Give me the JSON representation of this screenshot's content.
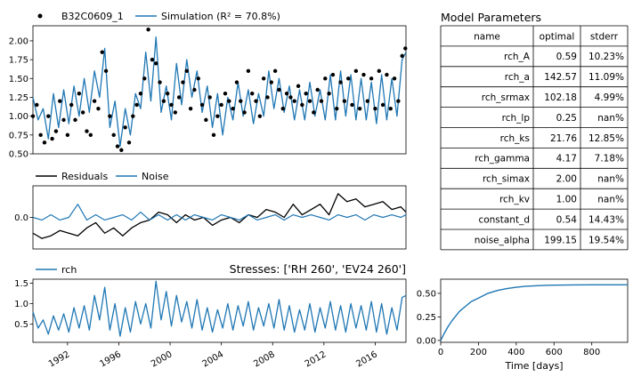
{
  "figure": {
    "params_title": "Model Parameters",
    "params_table": {
      "headers": [
        "name",
        "optimal",
        "stderr"
      ],
      "rows": [
        [
          "rch_A",
          "0.59",
          "10.23%"
        ],
        [
          "rch_a",
          "142.57",
          "11.09%"
        ],
        [
          "rch_srmax",
          "102.18",
          "4.99%"
        ],
        [
          "rch_lp",
          "0.25",
          "nan%"
        ],
        [
          "rch_ks",
          "21.76",
          "12.85%"
        ],
        [
          "rch_gamma",
          "4.17",
          "7.18%"
        ],
        [
          "rch_simax",
          "2.00",
          "nan%"
        ],
        [
          "rch_kv",
          "1.00",
          "nan%"
        ],
        [
          "constant_d",
          "0.54",
          "14.43%"
        ],
        [
          "noise_alpha",
          "199.15",
          "19.54%"
        ]
      ]
    },
    "stresses_title": "Stresses: ['RH 260', 'EV24 260']"
  },
  "colors": {
    "simulation": "#1f77b4",
    "observed": "#000000",
    "residuals": "#000000",
    "noise": "#1f77b4",
    "rch": "#1f77b4",
    "step": "#1f77b4"
  },
  "chart_data": [
    {
      "id": "fit",
      "type": "line",
      "legend": [
        "B32C0609_1",
        "Simulation (R² = 70.8%)"
      ],
      "legend_placement": "top-left",
      "xlim": [
        1989.3,
        2018.4
      ],
      "ylim": [
        0.5,
        2.2
      ],
      "yticks": [
        "0.50",
        "0.75",
        "1.00",
        "1.25",
        "1.50",
        "1.75",
        "2.00"
      ],
      "ytick_values": [
        0.5,
        0.75,
        1.0,
        1.25,
        1.5,
        1.75,
        2.0
      ],
      "simulation": {
        "x": [
          1989.3,
          1989.7,
          1990.1,
          1990.5,
          1990.9,
          1991.3,
          1991.7,
          1992.1,
          1992.5,
          1992.9,
          1993.3,
          1993.7,
          1994.1,
          1994.5,
          1994.9,
          1995.3,
          1995.7,
          1996.1,
          1996.5,
          1996.9,
          1997.3,
          1997.7,
          1998.1,
          1998.5,
          1998.9,
          1999.3,
          1999.7,
          2000.1,
          2000.5,
          2000.9,
          2001.3,
          2001.7,
          2002.1,
          2002.5,
          2002.9,
          2003.3,
          2003.7,
          2004.1,
          2004.5,
          2004.9,
          2005.3,
          2005.7,
          2006.1,
          2006.5,
          2006.9,
          2007.3,
          2007.7,
          2008.1,
          2008.5,
          2008.9,
          2009.3,
          2009.7,
          2010.1,
          2010.5,
          2010.9,
          2011.3,
          2011.7,
          2012.1,
          2012.5,
          2012.9,
          2013.3,
          2013.7,
          2014.1,
          2014.5,
          2014.9,
          2015.3,
          2015.7,
          2016.1,
          2016.5,
          2016.9,
          2017.3,
          2017.7,
          2018.1,
          2018.4
        ],
        "y": [
          1.25,
          0.95,
          1.1,
          0.7,
          1.3,
          0.85,
          1.35,
          0.9,
          1.4,
          1.0,
          1.5,
          1.05,
          1.6,
          1.25,
          1.9,
          0.85,
          1.2,
          0.6,
          1.1,
          0.75,
          1.3,
          1.1,
          1.85,
          1.2,
          2.05,
          1.05,
          1.4,
          0.95,
          1.7,
          1.15,
          1.75,
          1.25,
          1.6,
          1.05,
          1.4,
          0.85,
          1.3,
          0.75,
          1.25,
          0.95,
          1.45,
          1.0,
          1.35,
          0.9,
          1.3,
          1.0,
          1.6,
          1.1,
          1.5,
          1.05,
          1.4,
          0.95,
          1.35,
          0.95,
          1.45,
          1.0,
          1.35,
          0.95,
          1.55,
          0.95,
          1.6,
          1.0,
          1.55,
          0.95,
          1.5,
          0.95,
          1.45,
          0.9,
          1.55,
          0.95,
          1.5,
          1.0,
          1.75,
          1.85
        ]
      },
      "observed": {
        "x": [
          1989.3,
          1989.6,
          1989.9,
          1990.2,
          1990.5,
          1990.8,
          1991.1,
          1991.4,
          1991.7,
          1992.0,
          1992.3,
          1992.6,
          1992.9,
          1993.2,
          1993.5,
          1993.8,
          1994.1,
          1994.4,
          1994.7,
          1995.0,
          1995.3,
          1995.6,
          1995.9,
          1996.2,
          1996.5,
          1996.8,
          1997.1,
          1997.4,
          1997.7,
          1998.0,
          1998.3,
          1998.6,
          1998.9,
          1999.2,
          1999.5,
          1999.8,
          2000.1,
          2000.4,
          2000.7,
          2001.0,
          2001.3,
          2001.6,
          2001.9,
          2002.2,
          2002.5,
          2002.8,
          2003.1,
          2003.4,
          2003.7,
          2004.0,
          2004.3,
          2004.6,
          2004.9,
          2005.2,
          2005.5,
          2005.8,
          2006.1,
          2006.4,
          2006.7,
          2007.0,
          2007.3,
          2007.6,
          2007.9,
          2008.2,
          2008.5,
          2008.8,
          2009.1,
          2009.4,
          2009.7,
          2010.0,
          2010.3,
          2010.6,
          2010.9,
          2011.2,
          2011.5,
          2011.8,
          2012.1,
          2012.4,
          2012.7,
          2013.0,
          2013.3,
          2013.6,
          2013.9,
          2014.2,
          2014.5,
          2014.8,
          2015.1,
          2015.4,
          2015.7,
          2016.0,
          2016.3,
          2016.6,
          2016.9,
          2017.2,
          2017.5,
          2017.8,
          2018.1,
          2018.35
        ],
        "y": [
          1.0,
          1.15,
          0.75,
          0.65,
          1.0,
          0.7,
          0.8,
          1.2,
          0.95,
          0.75,
          1.15,
          0.95,
          1.3,
          1.05,
          0.8,
          0.75,
          1.2,
          1.1,
          1.85,
          1.6,
          1.0,
          0.75,
          0.6,
          0.55,
          0.85,
          0.65,
          1.0,
          1.15,
          1.3,
          1.5,
          2.15,
          1.75,
          1.7,
          1.45,
          1.2,
          1.3,
          1.15,
          1.05,
          1.25,
          1.45,
          1.6,
          1.1,
          1.35,
          1.5,
          1.15,
          0.95,
          1.25,
          0.75,
          1.0,
          1.15,
          1.3,
          1.2,
          1.1,
          1.45,
          1.2,
          1.05,
          1.6,
          1.3,
          1.2,
          1.0,
          1.5,
          1.25,
          1.45,
          1.6,
          1.35,
          1.1,
          1.3,
          1.25,
          1.2,
          1.4,
          1.15,
          1.3,
          1.2,
          1.05,
          1.35,
          1.2,
          1.5,
          1.3,
          1.55,
          1.1,
          1.45,
          1.2,
          1.5,
          1.15,
          1.6,
          1.1,
          1.55,
          1.2,
          1.5,
          1.1,
          1.6,
          1.15,
          1.55,
          1.1,
          1.5,
          1.2,
          1.8,
          1.9
        ]
      }
    },
    {
      "id": "residuals",
      "type": "line",
      "legend": [
        "Residuals",
        "Noise"
      ],
      "legend_placement": "top-left",
      "xlim": [
        1989.3,
        2018.4
      ],
      "ylim": [
        -0.6,
        0.6
      ],
      "yticks": [
        "0.0"
      ],
      "ytick_values": [
        0.0
      ],
      "series": [
        {
          "name": "Residuals",
          "x": [
            1989.3,
            1990.0,
            1990.7,
            1991.4,
            1992.1,
            1992.8,
            1993.5,
            1994.2,
            1994.9,
            1995.6,
            1996.3,
            1997.0,
            1997.7,
            1998.4,
            1999.1,
            1999.8,
            2000.5,
            2001.2,
            2001.9,
            2002.6,
            2003.3,
            2004.0,
            2004.7,
            2005.4,
            2006.1,
            2006.8,
            2007.5,
            2008.2,
            2008.9,
            2009.6,
            2010.3,
            2011.0,
            2011.7,
            2012.4,
            2013.1,
            2013.8,
            2014.5,
            2015.2,
            2015.9,
            2016.6,
            2017.3,
            2018.0,
            2018.4
          ],
          "y": [
            -0.3,
            -0.4,
            -0.35,
            -0.25,
            -0.3,
            -0.35,
            -0.2,
            -0.1,
            -0.3,
            -0.2,
            -0.35,
            -0.2,
            -0.1,
            -0.05,
            0.1,
            0.05,
            -0.1,
            0.05,
            -0.05,
            0.0,
            -0.15,
            -0.05,
            0.0,
            -0.1,
            0.05,
            0.0,
            0.15,
            0.1,
            0.0,
            0.25,
            0.05,
            0.15,
            0.25,
            0.05,
            0.45,
            0.3,
            0.35,
            0.2,
            0.25,
            0.3,
            0.15,
            0.2,
            0.1
          ]
        },
        {
          "name": "Noise",
          "x": [
            1989.3,
            1990.0,
            1990.7,
            1991.4,
            1992.1,
            1992.8,
            1993.5,
            1994.2,
            1994.9,
            1995.6,
            1996.3,
            1997.0,
            1997.7,
            1998.4,
            1999.1,
            1999.8,
            2000.5,
            2001.2,
            2001.9,
            2002.6,
            2003.3,
            2004.0,
            2004.7,
            2005.4,
            2006.1,
            2006.8,
            2007.5,
            2008.2,
            2008.9,
            2009.6,
            2010.3,
            2011.0,
            2011.7,
            2012.4,
            2013.1,
            2013.8,
            2014.5,
            2015.2,
            2015.9,
            2016.6,
            2017.3,
            2018.0,
            2018.4
          ],
          "y": [
            0.0,
            -0.05,
            0.05,
            -0.05,
            0.0,
            0.25,
            -0.05,
            0.05,
            -0.05,
            0.0,
            0.05,
            -0.05,
            0.1,
            -0.05,
            0.05,
            -0.05,
            0.05,
            -0.05,
            0.05,
            0.0,
            -0.05,
            0.05,
            0.0,
            -0.05,
            0.05,
            -0.05,
            0.0,
            0.05,
            -0.05,
            0.05,
            0.0,
            0.05,
            0.0,
            -0.05,
            0.05,
            0.0,
            0.05,
            -0.05,
            0.05,
            0.0,
            0.05,
            0.0,
            0.05
          ]
        }
      ]
    },
    {
      "id": "stresses",
      "type": "line",
      "legend": [
        "rch"
      ],
      "legend_placement": "top-left",
      "xlim": [
        1989.3,
        2018.4
      ],
      "ylim": [
        0.05,
        1.6
      ],
      "yticks": [
        "0.5",
        "1.0",
        "1.5"
      ],
      "ytick_values": [
        0.5,
        1.0,
        1.5
      ],
      "xticks": [
        "1992",
        "1996",
        "2000",
        "2004",
        "2008",
        "2012",
        "2016"
      ],
      "xtick_values": [
        1992,
        1996,
        2000,
        2004,
        2008,
        2012,
        2016
      ],
      "series": [
        {
          "name": "rch",
          "x": [
            1989.3,
            1989.7,
            1990.1,
            1990.5,
            1990.9,
            1991.3,
            1991.7,
            1992.1,
            1992.5,
            1992.9,
            1993.3,
            1993.7,
            1994.1,
            1994.5,
            1994.9,
            1995.3,
            1995.7,
            1996.1,
            1996.5,
            1996.9,
            1997.3,
            1997.7,
            1998.1,
            1998.5,
            1998.9,
            1999.3,
            1999.7,
            2000.1,
            2000.5,
            2000.9,
            2001.3,
            2001.7,
            2002.1,
            2002.5,
            2002.9,
            2003.3,
            2003.7,
            2004.1,
            2004.5,
            2004.9,
            2005.3,
            2005.7,
            2006.1,
            2006.5,
            2006.9,
            2007.3,
            2007.7,
            2008.1,
            2008.5,
            2008.9,
            2009.3,
            2009.7,
            2010.1,
            2010.5,
            2010.9,
            2011.3,
            2011.7,
            2012.1,
            2012.5,
            2012.9,
            2013.3,
            2013.7,
            2014.1,
            2014.5,
            2014.9,
            2015.3,
            2015.7,
            2016.1,
            2016.5,
            2016.9,
            2017.3,
            2017.7,
            2018.1,
            2018.4
          ],
          "y": [
            0.8,
            0.4,
            0.6,
            0.25,
            0.7,
            0.35,
            0.75,
            0.3,
            0.9,
            0.4,
            0.95,
            0.35,
            1.2,
            0.6,
            1.4,
            0.35,
            1.0,
            0.2,
            0.9,
            0.3,
            1.05,
            0.5,
            1.0,
            0.4,
            1.55,
            0.6,
            1.3,
            0.45,
            1.2,
            0.55,
            1.05,
            0.4,
            1.1,
            0.35,
            0.9,
            0.3,
            0.85,
            0.4,
            1.0,
            0.35,
            0.95,
            0.45,
            1.05,
            0.35,
            0.9,
            0.45,
            1.0,
            0.4,
            1.1,
            0.35,
            0.95,
            0.3,
            0.85,
            0.35,
            1.0,
            0.3,
            0.9,
            0.4,
            1.05,
            0.35,
            0.95,
            0.3,
            1.0,
            0.4,
            0.95,
            0.35,
            1.05,
            0.3,
            1.0,
            0.25,
            0.9,
            0.35,
            1.15,
            1.2
          ]
        }
      ]
    },
    {
      "id": "step_response",
      "type": "line",
      "xlabel": "Time [days]",
      "xlim": [
        0,
        990
      ],
      "ylim": [
        -0.02,
        0.65
      ],
      "xticks": [
        "0",
        "200",
        "400",
        "600",
        "800"
      ],
      "xtick_values": [
        0,
        200,
        400,
        600,
        800
      ],
      "yticks": [
        "0.00",
        "0.25",
        "0.50"
      ],
      "ytick_values": [
        0.0,
        0.25,
        0.5
      ],
      "series": [
        {
          "name": "",
          "x": [
            0,
            20,
            40,
            60,
            80,
            100,
            130,
            160,
            200,
            250,
            300,
            350,
            400,
            450,
            500,
            550,
            600,
            700,
            800,
            900,
            990
          ],
          "y": [
            0.0,
            0.08,
            0.15,
            0.21,
            0.26,
            0.31,
            0.36,
            0.41,
            0.45,
            0.5,
            0.53,
            0.55,
            0.565,
            0.575,
            0.58,
            0.585,
            0.587,
            0.589,
            0.59,
            0.59,
            0.59
          ]
        }
      ]
    }
  ]
}
